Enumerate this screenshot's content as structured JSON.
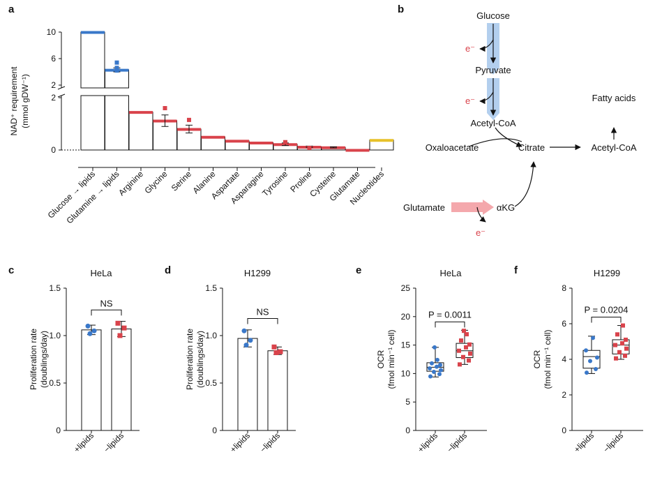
{
  "colors": {
    "blue": "#3a78c9",
    "red": "#d9434b",
    "yellow": "#e7c12a",
    "light_blue": "#b3cfee",
    "light_red": "#f4a8ac"
  },
  "panels": {
    "a": {
      "letter": "a"
    },
    "b": {
      "letter": "b"
    },
    "c": {
      "letter": "c"
    },
    "d": {
      "letter": "d"
    },
    "e": {
      "letter": "e"
    },
    "f": {
      "letter": "f"
    }
  },
  "pathway": {
    "glucose": "Glucose",
    "pyruvate": "Pyruvate",
    "acetylcoa1": "Acetyl-CoA",
    "oxaloacetate": "Oxaloacetate",
    "citrate": "Citrate",
    "acetylcoa2": "Acetyl-CoA",
    "fatty_acids": "Fatty acids",
    "glutamate": "Glutamate",
    "akg": "αKG",
    "electron": "e⁻"
  },
  "chart_data": [
    {
      "panel": "a",
      "type": "bar",
      "ylabel_line1": "NAD⁺ requirement",
      "ylabel_line2": "(mmol gDW⁻¹)",
      "y_axis": "broken",
      "ylim_lower": [
        0,
        2
      ],
      "ylim_upper": [
        2,
        10
      ],
      "yticks_lower": [
        "0",
        "2"
      ],
      "yticks_upper": [
        "2",
        "6",
        "10"
      ],
      "categories": [
        "Glucose → lipids",
        "Glutamine → lipids",
        "Arginine",
        "Glycine",
        "Serine",
        "Alanine",
        "Aspartate",
        "Asparagine",
        "Tyrosine",
        "Proline",
        "Cysteine",
        "Glutamate",
        "Nucleotides"
      ],
      "values": [
        10.0,
        4.3,
        1.45,
        1.12,
        0.8,
        0.5,
        0.35,
        0.28,
        0.22,
        0.12,
        0.1,
        0.0,
        0.38
      ],
      "colors": [
        "blue",
        "blue",
        "red",
        "red",
        "red",
        "red",
        "red",
        "red",
        "red",
        "red",
        "red",
        "red",
        "yellow"
      ],
      "errors": [
        0,
        0.3,
        0,
        0.22,
        0.15,
        0,
        0,
        0,
        0.05,
        0.03,
        0.02,
        0,
        0
      ],
      "points": [
        [],
        [
          5.4,
          4.6,
          4.2
        ],
        [],
        [
          1.6
        ],
        [
          1.15
        ],
        [],
        [],
        [],
        [
          0.3
        ],
        [
          0.08
        ],
        [],
        [],
        []
      ]
    },
    {
      "panel": "c",
      "type": "bar",
      "title": "HeLa",
      "ylabel_line1": "Proliferation rate",
      "ylabel_line2": "(doublings/day)",
      "ylim": [
        0,
        1.5
      ],
      "yticks": [
        "0",
        "0.5",
        "1.0",
        "1.5"
      ],
      "categories": [
        "+lipids",
        "−lipids"
      ],
      "values": [
        1.06,
        1.07
      ],
      "errors": [
        0.05,
        0.08
      ],
      "points": [
        [
          1.1,
          1.05,
          1.02
        ],
        [
          1.13,
          1.08,
          1.0
        ]
      ],
      "colors": [
        "blue",
        "red"
      ],
      "annotation": "NS"
    },
    {
      "panel": "d",
      "type": "bar",
      "title": "H1299",
      "ylabel_line1": "Proliferation rate",
      "ylabel_line2": "(doublings/day)",
      "ylim": [
        0,
        1.5
      ],
      "yticks": [
        "0",
        "0.5",
        "1.0",
        "1.5"
      ],
      "categories": [
        "+lipids",
        "−lipids"
      ],
      "values": [
        0.97,
        0.84
      ],
      "errors": [
        0.09,
        0.04
      ],
      "points": [
        [
          1.05,
          0.95,
          0.9
        ],
        [
          0.88,
          0.83,
          0.82
        ]
      ],
      "colors": [
        "blue",
        "red"
      ],
      "annotation": "NS"
    },
    {
      "panel": "e",
      "type": "box",
      "title": "HeLa",
      "ylabel_line1": "OCR",
      "ylabel_line2": "(fmol min⁻¹ cell)",
      "ylim": [
        0,
        25
      ],
      "yticks": [
        "0",
        "5",
        "10",
        "15",
        "20",
        "25"
      ],
      "categories": [
        "+lipids",
        "−lipids"
      ],
      "boxes": [
        {
          "min": 9.4,
          "q1": 10.4,
          "median": 11.1,
          "q3": 11.9,
          "max": 14.6
        },
        {
          "min": 11.6,
          "q1": 12.8,
          "median": 14.0,
          "q3": 15.3,
          "max": 17.6
        }
      ],
      "points": [
        [
          9.5,
          9.9,
          10.3,
          10.6,
          10.9,
          11.2,
          11.5,
          11.8,
          12.4,
          14.6
        ],
        [
          11.6,
          12.3,
          12.9,
          13.5,
          14.0,
          14.6,
          15.1,
          15.8,
          16.9,
          17.5
        ]
      ],
      "colors": [
        "blue",
        "red"
      ],
      "annotation": "P = 0.0011"
    },
    {
      "panel": "f",
      "type": "box",
      "title": "H1299",
      "ylabel_line1": "OCR",
      "ylabel_line2": "(fmol min⁻¹ cell)",
      "ylim": [
        0,
        8
      ],
      "yticks": [
        "0",
        "2",
        "4",
        "6",
        "8"
      ],
      "categories": [
        "+lipids",
        "−lipids"
      ],
      "boxes": [
        {
          "min": 3.2,
          "q1": 3.5,
          "median": 4.15,
          "q3": 4.5,
          "max": 5.3
        },
        {
          "min": 4.0,
          "q1": 4.3,
          "median": 4.8,
          "q3": 5.1,
          "max": 5.9
        }
      ],
      "points": [
        [
          3.25,
          3.45,
          3.9,
          4.1,
          4.5,
          5.2
        ],
        [
          4.05,
          4.2,
          4.4,
          4.6,
          4.8,
          4.9,
          5.1,
          5.4,
          5.9
        ]
      ],
      "colors": [
        "blue",
        "red"
      ],
      "annotation": "P = 0.0204"
    }
  ]
}
